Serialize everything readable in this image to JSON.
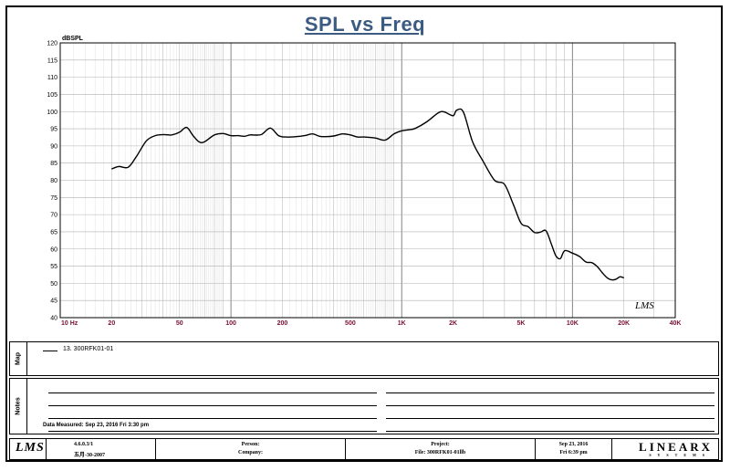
{
  "title": "SPL vs Freq",
  "ylabel": "dBSPL",
  "x_ticks": [
    "10 Hz",
    "20",
    "50",
    "100",
    "200",
    "500",
    "1K",
    "2K",
    "5K",
    "10K",
    "20K",
    "40K"
  ],
  "y_ticks": [
    "40",
    "45",
    "50",
    "55",
    "60",
    "65",
    "70",
    "75",
    "80",
    "85",
    "90",
    "95",
    "100",
    "105",
    "110",
    "115",
    "120"
  ],
  "watermark": "LMS",
  "legend": {
    "entry": "13. 300RFK01-01"
  },
  "side_labels": {
    "map": "Map",
    "notes": "Notes"
  },
  "data_measured": "Data Measured: Sep 23, 2016  Fri  3:30 pm",
  "footer": {
    "logo": "LMS",
    "version": "4.6.0.3/1",
    "date_code": "五月-30-2007",
    "person_label": "Person:",
    "company_label": "Company:",
    "project_label": "Project:",
    "file_label": "File: 300RFK01-01llb",
    "date": "Sep 23, 2016",
    "time": "Fri  6:39 pm",
    "brand": "LINEARX",
    "brand_sub": "SYSTEMS"
  },
  "colors": {
    "title": "#3b5b82",
    "x_tick": "#7a1030",
    "grid": "#b0b0b0",
    "curve": "#000000"
  },
  "chart_data": {
    "type": "line",
    "title": "SPL vs Freq",
    "xlabel": "",
    "ylabel": "dBSPL",
    "x_scale": "log",
    "xlim": [
      10,
      40000
    ],
    "ylim": [
      40,
      120
    ],
    "grid": true,
    "series": [
      {
        "name": "13. 300RFK01-01",
        "x": [
          20,
          22,
          25,
          28,
          32,
          36,
          40,
          45,
          50,
          55,
          60,
          65,
          70,
          80,
          90,
          100,
          110,
          120,
          130,
          150,
          170,
          190,
          210,
          240,
          270,
          300,
          330,
          360,
          400,
          450,
          500,
          550,
          600,
          700,
          800,
          900,
          1000,
          1100,
          1200,
          1400,
          1600,
          1700,
          1800,
          2000,
          2100,
          2300,
          2600,
          3000,
          3500,
          4000,
          4500,
          5000,
          5500,
          6000,
          6500,
          7000,
          7500,
          8000,
          8500,
          9000,
          10000,
          11000,
          12000,
          13000,
          14000,
          15000,
          16000,
          17000,
          18000,
          19000,
          20000
        ],
        "values": [
          83.3,
          84,
          83.8,
          87,
          91.5,
          93,
          93.3,
          93.2,
          94,
          95.4,
          93,
          91.2,
          91.2,
          93.2,
          93.6,
          93,
          93,
          92.8,
          93.2,
          93.3,
          95.2,
          93,
          92.6,
          92.7,
          93,
          93.5,
          92.8,
          92.7,
          92.9,
          93.5,
          93.2,
          92.6,
          92.6,
          92.3,
          91.7,
          93.5,
          94.4,
          94.7,
          95.1,
          97,
          99.3,
          100,
          99.8,
          98.8,
          100.4,
          99.8,
          91.2,
          85.5,
          80,
          78.8,
          73,
          67.5,
          66.5,
          64.8,
          64.9,
          65.3,
          61.6,
          58,
          57.2,
          59.5,
          58.8,
          57.8,
          56.2,
          56,
          54.8,
          53,
          51.6,
          51,
          51.2,
          51.9,
          51.6
        ]
      }
    ]
  }
}
